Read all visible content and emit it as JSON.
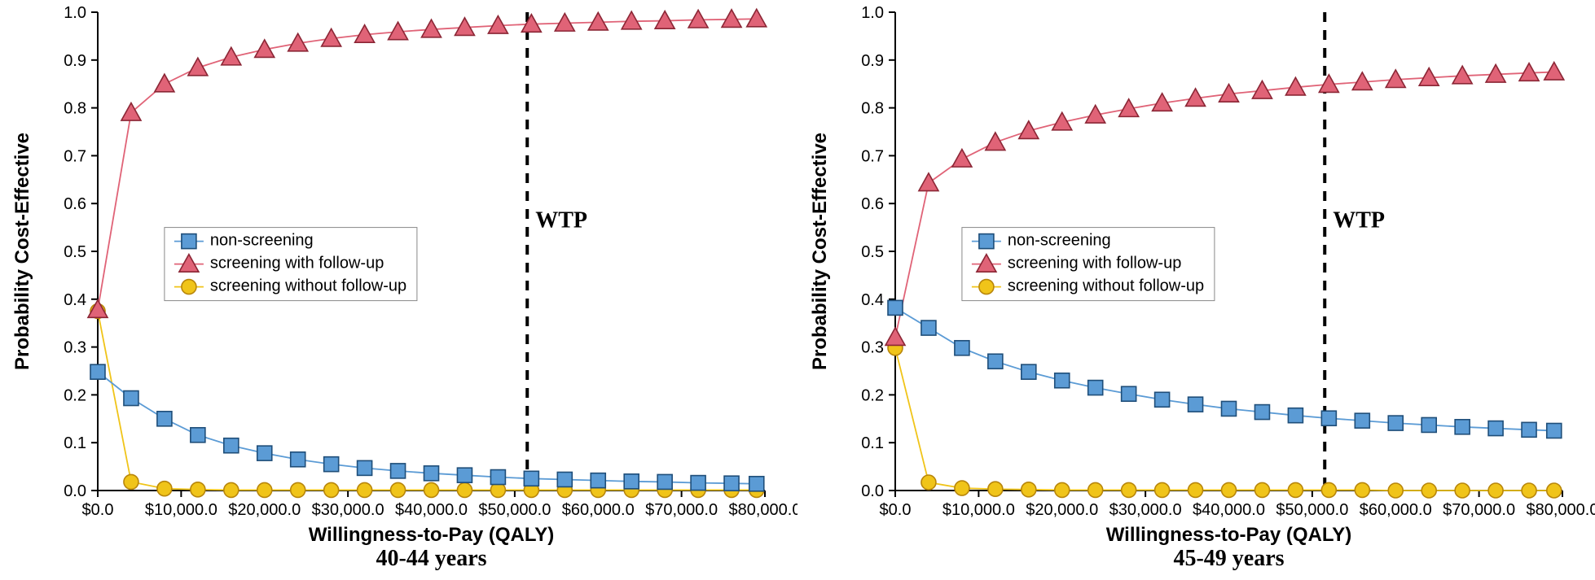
{
  "global": {
    "background_color": "#ffffff",
    "axis_color": "#000000",
    "y_label": "Probability Cost-Effective",
    "x_label": "Willingness-to-Pay (QALY)",
    "wtp_label": "WTP",
    "wtp_x": 51500,
    "y_label_fontsize": 24,
    "x_label_fontsize": 24,
    "subtitle_fontsize": 28,
    "tick_fontsize": 20,
    "legend_fontsize": 20,
    "ylim": [
      0,
      1.0
    ],
    "ytick_step": 0.1,
    "xlim": [
      0,
      80000
    ],
    "xtick_step": 10000,
    "series_styles": {
      "non_screening": {
        "label": "non-screening",
        "line_color": "#5b9bd5",
        "marker_fill": "#5b9bd5",
        "marker_edge": "#1f4e79",
        "marker": "square",
        "marker_size": 9,
        "line_width": 1.8
      },
      "screening_with_followup": {
        "label": "screening with follow-up",
        "line_color": "#e06377",
        "marker_fill": "#e06377",
        "marker_edge": "#8b2635",
        "marker": "triangle",
        "marker_size": 10,
        "line_width": 1.8
      },
      "screening_without_followup": {
        "label": "screening without follow-up",
        "line_color": "#f0c419",
        "marker_fill": "#f0c419",
        "marker_edge": "#b8860b",
        "marker": "circle",
        "marker_size": 9,
        "line_width": 1.8
      }
    }
  },
  "panels": [
    {
      "subtitle": "40-44 years",
      "x_values": [
        0,
        4000,
        8000,
        12000,
        16000,
        20000,
        24000,
        28000,
        32000,
        36000,
        40000,
        44000,
        48000,
        52000,
        56000,
        60000,
        64000,
        68000,
        72000,
        76000,
        79000
      ],
      "series": {
        "non_screening": [
          0.248,
          0.193,
          0.15,
          0.116,
          0.094,
          0.078,
          0.065,
          0.055,
          0.047,
          0.041,
          0.036,
          0.032,
          0.028,
          0.025,
          0.023,
          0.021,
          0.019,
          0.018,
          0.016,
          0.015,
          0.014
        ],
        "screening_with_followup": [
          0.378,
          0.79,
          0.85,
          0.884,
          0.906,
          0.922,
          0.935,
          0.945,
          0.953,
          0.959,
          0.964,
          0.968,
          0.972,
          0.975,
          0.977,
          0.979,
          0.981,
          0.982,
          0.984,
          0.985,
          0.986
        ],
        "screening_without_followup": [
          0.375,
          0.018,
          0.004,
          0.002,
          0.001,
          0.001,
          0.001,
          0.001,
          0.001,
          0.001,
          0.001,
          0.001,
          0.001,
          0.001,
          0.001,
          0.001,
          0.001,
          0.001,
          0.001,
          0.001,
          0.001
        ]
      }
    },
    {
      "subtitle": "45-49 years",
      "x_values": [
        0,
        4000,
        8000,
        12000,
        16000,
        20000,
        24000,
        28000,
        32000,
        36000,
        40000,
        44000,
        48000,
        52000,
        56000,
        60000,
        64000,
        68000,
        72000,
        76000,
        79000
      ],
      "series": {
        "non_screening": [
          0.382,
          0.34,
          0.298,
          0.27,
          0.248,
          0.23,
          0.215,
          0.202,
          0.19,
          0.18,
          0.171,
          0.164,
          0.157,
          0.151,
          0.146,
          0.141,
          0.137,
          0.133,
          0.13,
          0.127,
          0.125
        ],
        "screening_with_followup": [
          0.32,
          0.643,
          0.693,
          0.728,
          0.752,
          0.77,
          0.785,
          0.798,
          0.81,
          0.82,
          0.829,
          0.836,
          0.843,
          0.849,
          0.854,
          0.859,
          0.863,
          0.867,
          0.87,
          0.873,
          0.875
        ],
        "screening_without_followup": [
          0.298,
          0.017,
          0.005,
          0.003,
          0.002,
          0.001,
          0.001,
          0.001,
          0.001,
          0.001,
          0.001,
          0.001,
          0.001,
          0.001,
          0.001,
          0.0,
          0.0,
          0.0,
          0.0,
          0.0,
          0.0
        ]
      }
    }
  ]
}
